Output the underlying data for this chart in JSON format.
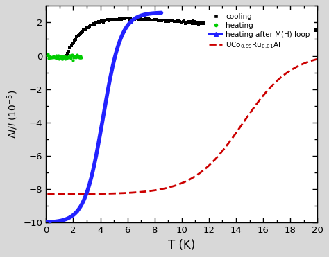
{
  "title": "",
  "xlabel": "T (K)",
  "xlim": [
    0,
    20
  ],
  "ylim": [
    -10,
    3
  ],
  "yticks": [
    -10,
    -8,
    -6,
    -4,
    -2,
    0,
    2
  ],
  "xticks": [
    0,
    2,
    4,
    6,
    8,
    10,
    12,
    14,
    16,
    18,
    20
  ],
  "bg_color": "#d8d8d8",
  "plot_bg_color": "#ffffff",
  "cooling_color": "#000000",
  "heating_color": "#00cc00",
  "heating_after_color": "#2222ff",
  "dashed_color": "#cc0000",
  "legend_labels": [
    "cooling",
    "heating",
    "heating after M(H) loop",
    "UCo$_{0.99}$Ru$_{0.01}$Al"
  ]
}
